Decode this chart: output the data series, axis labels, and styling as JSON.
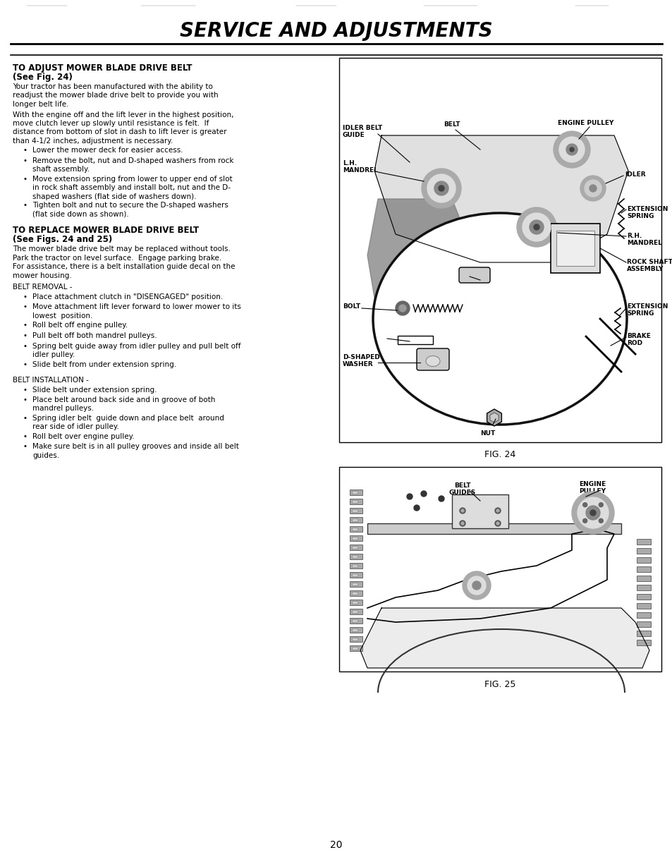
{
  "page_title": "SERVICE AND ADJUSTMENTS",
  "sec1_head1": "TO ADJUST MOWER BLADE DRIVE BELT",
  "sec1_head2": "(See Fig. 24)",
  "sec1_p1": "Your tractor has been manufactured with the ability to\nreadjust the mower blade drive belt to provide you with\nlonger belt life.",
  "sec1_p2": "With the engine off and the lift lever in the highest position,\nmove clutch lever up slowly until resistance is felt.  If\ndistance from bottom of slot in dash to lift lever is greater\nthan 4-1/2 inches, adjustment is necessary.",
  "sec1_bullets": [
    "Lower the mower deck for easier access.",
    "Remove the bolt, nut and D-shaped washers from rock\nshaft assembly.",
    "Move extension spring from lower to upper end of slot\nin rock shaft assembly and install bolt, nut and the D-\nshaped washers (flat side of washers down).",
    "Tighten bolt and nut to secure the D-shaped washers\n(flat side down as shown)."
  ],
  "sec2_head1": "TO REPLACE MOWER BLADE DRIVE BELT",
  "sec2_head2": "(See Figs. 24 and 25)",
  "sec2_p1": "The mower blade drive belt may be replaced without tools.\nPark the tractor on level surface.  Engage parking brake.\nFor assistance, there is a belt installation guide decal on the\nmower housing.",
  "belt_rem_head": "BELT REMOVAL -",
  "belt_rem_bullets": [
    "Place attachment clutch in \"DISENGAGED\" position.",
    "Move attachment lift lever forward to lower mower to its\nlowest  position.",
    "Roll belt off engine pulley.",
    "Pull belt off both mandrel pulleys.",
    "Spring belt guide away from idler pulley and pull belt off\nidler pulley.",
    "Slide belt from under extension spring."
  ],
  "belt_inst_head": "BELT INSTALLATION -",
  "belt_inst_bullets": [
    "Slide belt under extension spring.",
    "Place belt around back side and in groove of both\nmandrel pulleys.",
    "Spring idler belt  guide down and place belt  around\nrear side of idler pulley.",
    "Roll belt over engine pulley.",
    "Make sure belt is in all pulley grooves and inside all belt\nguides."
  ],
  "fig24_caption": "FIG. 24",
  "fig25_caption": "FIG. 25",
  "page_number": "20",
  "bg_color": "#ffffff"
}
